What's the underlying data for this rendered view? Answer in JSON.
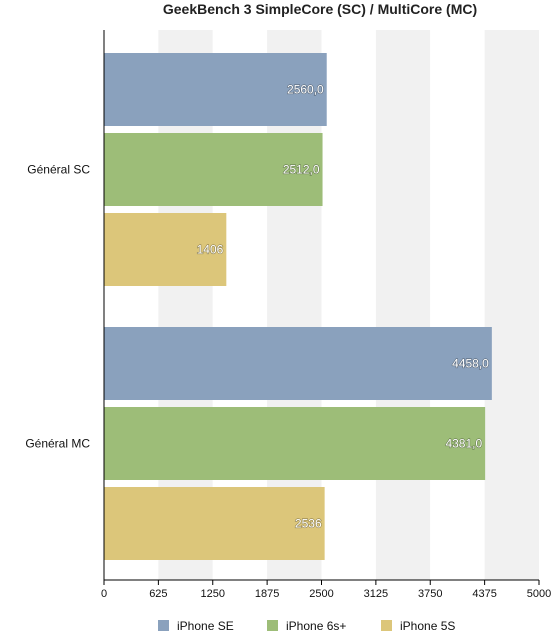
{
  "chart_data": {
    "type": "bar",
    "orientation": "horizontal",
    "title": "GeekBench 3 SimpleCore (SC) / MultiCore (MC)",
    "categories": [
      "Général SC",
      "Général MC"
    ],
    "series": [
      {
        "name": "iPhone SE",
        "values": [
          2560,
          4458
        ],
        "labels": [
          "2560,0",
          "4458,0"
        ],
        "color": "#8aa1bd"
      },
      {
        "name": "iPhone 6s+",
        "values": [
          2512,
          4381
        ],
        "labels": [
          "2512,0",
          "4381,0"
        ],
        "color": "#9dbd78"
      },
      {
        "name": "iPhone 5S",
        "values": [
          1406,
          2536
        ],
        "labels": [
          "1406",
          "2536"
        ],
        "color": "#dcc67a"
      }
    ],
    "xlim": [
      0,
      5000
    ],
    "xticks": [
      0,
      625,
      1250,
      1875,
      2500,
      3125,
      3750,
      4375,
      5000
    ],
    "xlabel": "",
    "ylabel": "",
    "grid": "alternating vertical bands",
    "legend_position": "bottom"
  }
}
